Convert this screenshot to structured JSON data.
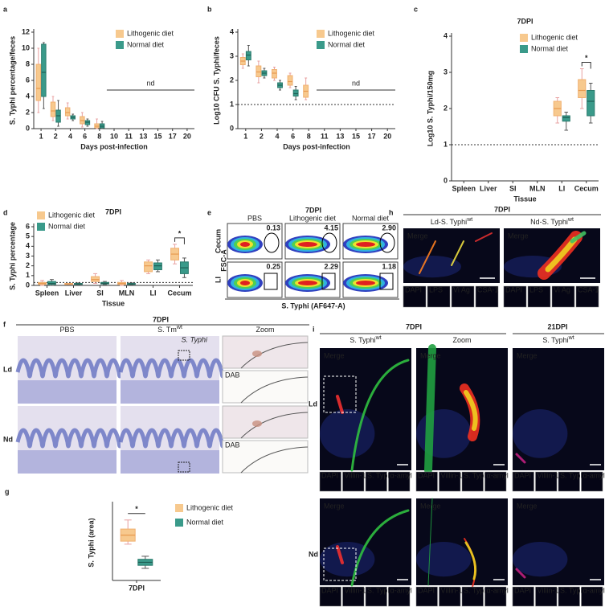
{
  "chart_data": [
    {
      "panel": "a",
      "type": "box",
      "ylabel": "S. Typhi percentage/feces",
      "xlabel": "Days post-infection",
      "categories": [
        "1",
        "2",
        "4",
        "6",
        "8",
        "10",
        "11",
        "13",
        "15",
        "17",
        "20"
      ],
      "series": [
        {
          "name": "Lithogenic diet",
          "color": "#f7c98e",
          "min": [
            2,
            1,
            1.2,
            0.2,
            0,
            null,
            null,
            null,
            null,
            null,
            null
          ],
          "q1": [
            3.5,
            1.5,
            1.6,
            0.6,
            0.1,
            null,
            null,
            null,
            null,
            null,
            null
          ],
          "median": [
            5,
            2.2,
            2,
            1,
            0.3,
            null,
            null,
            null,
            null,
            null,
            null
          ],
          "q3": [
            8,
            3.3,
            2.6,
            1.5,
            0.6,
            null,
            null,
            null,
            null,
            null,
            null
          ],
          "max": [
            10,
            4,
            3.2,
            2,
            1.2,
            null,
            null,
            null,
            null,
            null,
            null
          ]
        },
        {
          "name": "Normal diet",
          "color": "#3a9a8a",
          "min": [
            2.5,
            0.3,
            1,
            0.3,
            0,
            null,
            null,
            null,
            null,
            null,
            null
          ],
          "q1": [
            4,
            0.8,
            1.2,
            0.5,
            0.1,
            null,
            null,
            null,
            null,
            null,
            null
          ],
          "median": [
            7,
            1.6,
            1.4,
            0.8,
            0.3,
            null,
            null,
            null,
            null,
            null,
            null
          ],
          "q3": [
            10.5,
            2.3,
            1.6,
            1,
            0.6,
            null,
            null,
            null,
            null,
            null,
            null
          ],
          "max": [
            10.7,
            3.5,
            1.8,
            1.2,
            0.9,
            null,
            null,
            null,
            null,
            null,
            null
          ]
        }
      ],
      "ylim": [
        0,
        12
      ],
      "yticks": [
        0,
        2,
        4,
        6,
        8,
        10,
        12
      ],
      "threshold": 0,
      "annotation": "nd",
      "legend": "upper right"
    },
    {
      "panel": "b",
      "type": "box",
      "ylabel": "Log10 CFU S. Typhi/feces",
      "xlabel": "Days post-infection",
      "categories": [
        "1",
        "2",
        "4",
        "6",
        "8",
        "11",
        "13",
        "15",
        "17",
        "20"
      ],
      "series": [
        {
          "name": "Lithogenic diet",
          "color": "#f7c98e",
          "min": [
            2.5,
            1.9,
            2,
            1.7,
            1.2,
            null,
            null,
            null,
            null,
            null
          ],
          "q1": [
            2.65,
            2.15,
            2.1,
            1.8,
            1.3,
            null,
            null,
            null,
            null,
            null
          ],
          "median": [
            2.8,
            2.35,
            2.3,
            1.95,
            1.55,
            null,
            null,
            null,
            null,
            null
          ],
          "q3": [
            2.95,
            2.6,
            2.45,
            2.2,
            1.8,
            null,
            null,
            null,
            null,
            null
          ],
          "max": [
            3.1,
            2.8,
            2.55,
            2.3,
            2.1,
            null,
            null,
            null,
            null,
            null
          ]
        },
        {
          "name": "Normal diet",
          "color": "#3a9a8a",
          "min": [
            2.6,
            2.1,
            1.6,
            1.2,
            null,
            null,
            null,
            null,
            null,
            null
          ],
          "q1": [
            2.85,
            2.2,
            1.7,
            1.35,
            null,
            null,
            null,
            null,
            null,
            null
          ],
          "median": [
            3.05,
            2.3,
            1.8,
            1.45,
            null,
            null,
            null,
            null,
            null,
            null
          ],
          "q3": [
            3.2,
            2.4,
            1.9,
            1.6,
            null,
            null,
            null,
            null,
            null,
            null
          ],
          "max": [
            3.45,
            2.5,
            2,
            1.75,
            null,
            null,
            null,
            null,
            null,
            null
          ]
        }
      ],
      "ylim": [
        0,
        4
      ],
      "yticks": [
        0,
        1,
        2,
        3,
        4
      ],
      "threshold": 1,
      "annotation": "nd",
      "legend": "upper right"
    },
    {
      "panel": "c",
      "type": "box",
      "title": "7DPI",
      "ylabel": "Log10 S. Typhi/150mg",
      "xlabel": "Tissue",
      "categories": [
        "Spleen",
        "Liver",
        "SI",
        "MLN",
        "LI",
        "Cecum"
      ],
      "series": [
        {
          "name": "Lithogenic diet",
          "color": "#f7c98e",
          "min": [
            null,
            null,
            null,
            null,
            1.6,
            2
          ],
          "q1": [
            null,
            null,
            null,
            null,
            1.8,
            2.3
          ],
          "median": [
            null,
            null,
            null,
            null,
            2,
            2.5
          ],
          "q3": [
            null,
            null,
            null,
            null,
            2.2,
            2.8
          ],
          "max": [
            null,
            null,
            null,
            null,
            2.3,
            3.1
          ]
        },
        {
          "name": "Normal diet",
          "color": "#3a9a8a",
          "min": [
            null,
            null,
            null,
            null,
            1.4,
            1.6
          ],
          "q1": [
            null,
            null,
            null,
            null,
            1.65,
            1.8
          ],
          "median": [
            null,
            null,
            null,
            null,
            1.75,
            2.2
          ],
          "q3": [
            null,
            null,
            null,
            null,
            1.8,
            2.5
          ],
          "max": [
            null,
            null,
            null,
            null,
            1.9,
            2.7
          ]
        }
      ],
      "ylim": [
        0,
        4
      ],
      "yticks": [
        0,
        1,
        2,
        3,
        4
      ],
      "threshold": 1,
      "annotation": "*",
      "legend": "upper right"
    },
    {
      "panel": "d",
      "type": "box",
      "title": "7DPI",
      "ylabel": "S. Typhi percentage",
      "xlabel": "Tissue",
      "categories": [
        "Spleen",
        "Liver",
        "SI",
        "MLN",
        "LI",
        "Cecum"
      ],
      "series": [
        {
          "name": "Lithogenic diet",
          "color": "#f7c98e",
          "min": [
            0,
            0.1,
            0.2,
            0,
            1.2,
            2.2
          ],
          "q1": [
            0.1,
            0.1,
            0.4,
            0.1,
            1.4,
            2.6
          ],
          "median": [
            0.2,
            0.15,
            0.6,
            0.2,
            2,
            3.2
          ],
          "q3": [
            0.3,
            0.2,
            0.9,
            0.3,
            2.4,
            3.8
          ],
          "max": [
            0.5,
            0.2,
            1.2,
            0.5,
            2.6,
            4.2
          ]
        },
        {
          "name": "Normal diet",
          "color": "#3a9a8a",
          "min": [
            0,
            0.05,
            0.1,
            0.05,
            1.4,
            0.8
          ],
          "q1": [
            0.1,
            0.1,
            0.15,
            0.1,
            1.6,
            1.2
          ],
          "median": [
            0.2,
            0.15,
            0.2,
            0.15,
            2,
            1.8
          ],
          "q3": [
            0.4,
            0.2,
            0.3,
            0.2,
            2.3,
            2.4
          ],
          "max": [
            0.6,
            0.25,
            0.4,
            0.25,
            2.6,
            2.8
          ]
        }
      ],
      "ylim": [
        0,
        6
      ],
      "yticks": [
        0,
        1,
        2,
        3,
        4,
        5,
        6
      ],
      "threshold": 0.3,
      "annotation": "*",
      "legend": "upper left"
    },
    {
      "panel": "g",
      "type": "box",
      "ylabel": "S. Typhi (area)",
      "categories": [
        "7DPI"
      ],
      "series": [
        {
          "name": "Lithogenic diet",
          "color": "#f7c98e",
          "min": [
            1.7
          ],
          "q1": [
            1.8
          ],
          "median": [
            2
          ],
          "q3": [
            2.2
          ],
          "max": [
            2.5
          ]
        },
        {
          "name": "Normal diet",
          "color": "#3a9a8a",
          "min": [
            0.9
          ],
          "q1": [
            1
          ],
          "median": [
            1.1
          ],
          "q3": [
            1.2
          ],
          "max": [
            1.3
          ]
        }
      ],
      "ylim": [
        0.5,
        3
      ],
      "annotation": "*",
      "legend": "right"
    }
  ],
  "panels": {
    "e": {
      "panel": "e",
      "title": "7DPI",
      "columns": [
        "PBS",
        "Lithogenic diet",
        "Normal diet"
      ],
      "rows": [
        "Cecum",
        "LI"
      ],
      "yaxis": "FSC-A",
      "xaxis": "S. Typhi (AF647-A)",
      "percentages": [
        [
          "0.13",
          "4.15",
          "2.90"
        ],
        [
          "0.25",
          "2.29",
          "1.18"
        ]
      ]
    },
    "f": {
      "panel": "f",
      "title": "7DPI",
      "columns": [
        {
          "main": "PBS"
        },
        {
          "main": "S. Tm",
          "sup": "wt"
        },
        {
          "main": "Zoom"
        }
      ],
      "rows": [
        "Ld",
        "Nd"
      ],
      "stain": "S. Typhi",
      "dab": "DAB"
    },
    "h": {
      "panel": "h",
      "title": "7DPI",
      "columns": [
        {
          "main": "Ld-S. Typhi",
          "sup": "wt"
        },
        {
          "main": "Nd-S. Typhi",
          "sup": "wt"
        }
      ],
      "merge": "Merge",
      "channels": [
        "DAPI",
        "LPS",
        "Vi Ag",
        "CSA-1"
      ]
    },
    "i": {
      "panel": "i",
      "groups": [
        "7DPI",
        "21DPI"
      ],
      "columns": [
        {
          "main": "S. Typhi",
          "sup": "wt"
        },
        {
          "main": "Zoom"
        },
        {
          "main": "S. Typhi",
          "sup": "wt"
        }
      ],
      "rows": [
        "Ld",
        "Nd"
      ],
      "merge": "Merge",
      "channels": [
        "DAPI",
        "Villin-1",
        "S. Typhi",
        "α-amyl"
      ]
    }
  }
}
